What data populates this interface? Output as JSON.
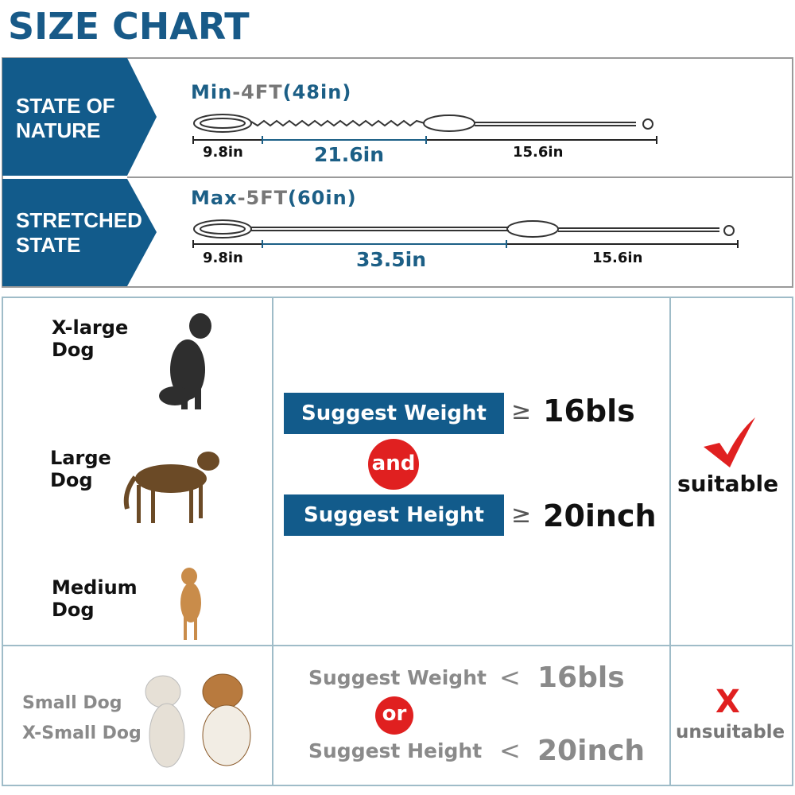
{
  "title": "SIZE CHART",
  "states": [
    {
      "label_line1": "STATE OF",
      "label_line2": "NATURE",
      "prefix": "Min",
      "dash": "-",
      "size": "4FT",
      "paren": "(48in)",
      "segments": [
        "9.8in",
        "21.6in",
        "15.6in"
      ]
    },
    {
      "label_line1": "STRETCHED",
      "label_line2": "STATE",
      "prefix": "Max",
      "dash": "-",
      "size": "5FT",
      "paren": "(60in)",
      "segments": [
        "9.8in",
        "33.5in",
        "15.6in"
      ]
    }
  ],
  "suitable_row": {
    "dogs": [
      "X-large",
      "Dog",
      "Large",
      "Dog",
      "Medium",
      "Dog"
    ],
    "weight_label": "Suggest Weight",
    "weight_op": "≥",
    "weight_value": "16bls",
    "connector": "and",
    "height_label": "Suggest Height",
    "height_op": "≥",
    "height_value": "20inch",
    "result": "suitable",
    "result_icon": "check-icon"
  },
  "unsuitable_row": {
    "dogs": [
      "Small Dog",
      "X-Small Dog"
    ],
    "weight_label": "Suggest Weight",
    "weight_op": "<",
    "weight_value": "16bls",
    "connector": "or",
    "height_label": "Suggest Height",
    "height_op": "<",
    "height_value": "20inch",
    "result_mark": "X",
    "result": "unsuitable"
  },
  "colors": {
    "brand_blue": "#125b8b",
    "accent_red": "#e02020"
  }
}
